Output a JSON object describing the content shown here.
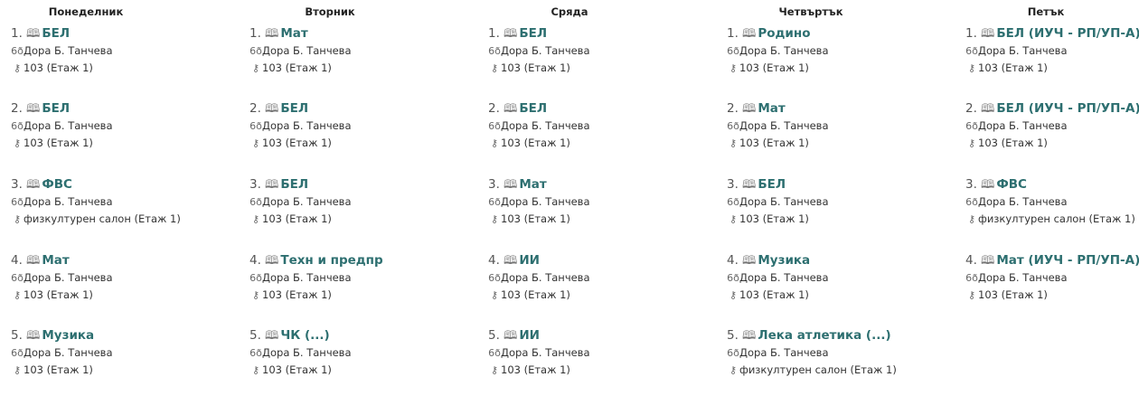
{
  "colors": {
    "subject": "#2d6f70"
  },
  "icons": {
    "subject": "book-icon",
    "teacher": "glasses-icon",
    "room": "key-icon"
  },
  "days": [
    {
      "name": "Понеделник",
      "lessons": [
        {
          "num": "1.",
          "subject": "БЕЛ",
          "teacher": "Дора Б. Танчева",
          "room": "103 (Етаж 1)"
        },
        {
          "num": "2.",
          "subject": "БЕЛ",
          "teacher": "Дора Б. Танчева",
          "room": "103 (Етаж 1)"
        },
        {
          "num": "3.",
          "subject": "ФВС",
          "teacher": "Дора Б. Танчева",
          "room": "физкултурен салон (Етаж 1)"
        },
        {
          "num": "4.",
          "subject": "Мат",
          "teacher": "Дора Б. Танчева",
          "room": "103 (Етаж 1)"
        },
        {
          "num": "5.",
          "subject": "Музика",
          "teacher": "Дора Б. Танчева",
          "room": "103 (Етаж 1)"
        }
      ]
    },
    {
      "name": "Вторник",
      "lessons": [
        {
          "num": "1.",
          "subject": "Мат",
          "teacher": "Дора Б. Танчева",
          "room": "103 (Етаж 1)"
        },
        {
          "num": "2.",
          "subject": "БЕЛ",
          "teacher": "Дора Б. Танчева",
          "room": "103 (Етаж 1)"
        },
        {
          "num": "3.",
          "subject": "БЕЛ",
          "teacher": "Дора Б. Танчева",
          "room": "103 (Етаж 1)"
        },
        {
          "num": "4.",
          "subject": "Техн и предпр",
          "teacher": "Дора Б. Танчева",
          "room": "103 (Етаж 1)"
        },
        {
          "num": "5.",
          "subject": "ЧК (...)",
          "teacher": "Дора Б. Танчева",
          "room": "103 (Етаж 1)"
        }
      ]
    },
    {
      "name": "Сряда",
      "lessons": [
        {
          "num": "1.",
          "subject": "БЕЛ",
          "teacher": "Дора Б. Танчева",
          "room": "103 (Етаж 1)"
        },
        {
          "num": "2.",
          "subject": "БЕЛ",
          "teacher": "Дора Б. Танчева",
          "room": "103 (Етаж 1)"
        },
        {
          "num": "3.",
          "subject": "Мат",
          "teacher": "Дора Б. Танчева",
          "room": "103 (Етаж 1)"
        },
        {
          "num": "4.",
          "subject": "ИИ",
          "teacher": "Дора Б. Танчева",
          "room": "103 (Етаж 1)"
        },
        {
          "num": "5.",
          "subject": "ИИ",
          "teacher": "Дора Б. Танчева",
          "room": "103 (Етаж 1)"
        }
      ]
    },
    {
      "name": "Четвъртък",
      "lessons": [
        {
          "num": "1.",
          "subject": "Родино",
          "teacher": "Дора Б. Танчева",
          "room": "103 (Етаж 1)"
        },
        {
          "num": "2.",
          "subject": "Мат",
          "teacher": "Дора Б. Танчева",
          "room": "103 (Етаж 1)"
        },
        {
          "num": "3.",
          "subject": "БЕЛ",
          "teacher": "Дора Б. Танчева",
          "room": "103 (Етаж 1)"
        },
        {
          "num": "4.",
          "subject": "Музика",
          "teacher": "Дора Б. Танчева",
          "room": "103 (Етаж 1)"
        },
        {
          "num": "5.",
          "subject": "Лека атлетика (...)",
          "teacher": "Дора Б. Танчева",
          "room": "физкултурен салон (Етаж 1)"
        }
      ]
    },
    {
      "name": "Петък",
      "lessons": [
        {
          "num": "1.",
          "subject": "БЕЛ (ИУЧ - РП/УП-А)",
          "teacher": "Дора Б. Танчева",
          "room": "103 (Етаж 1)"
        },
        {
          "num": "2.",
          "subject": "БЕЛ (ИУЧ - РП/УП-А)",
          "teacher": "Дора Б. Танчева",
          "room": "103 (Етаж 1)"
        },
        {
          "num": "3.",
          "subject": "ФВС",
          "teacher": "Дора Б. Танчева",
          "room": "физкултурен салон (Етаж 1)"
        },
        {
          "num": "4.",
          "subject": "Мат (ИУЧ - РП/УП-А)",
          "teacher": "Дора Б. Танчева",
          "room": "103 (Етаж 1)"
        }
      ]
    }
  ]
}
